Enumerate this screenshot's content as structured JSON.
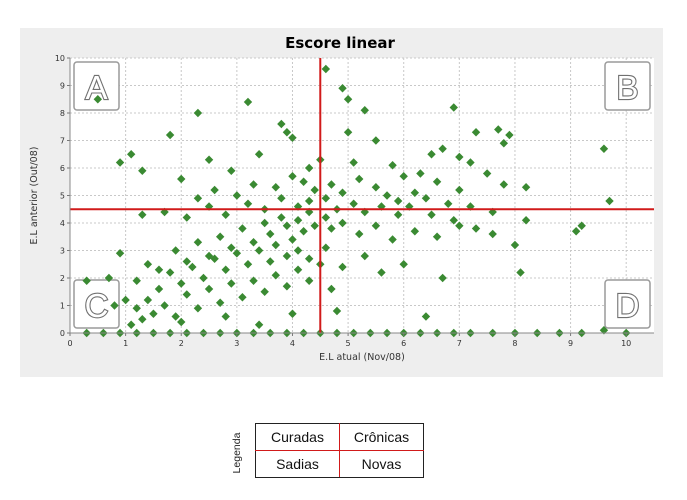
{
  "chart_data": {
    "type": "scatter",
    "title": "Escore linear",
    "xlabel": "E.L atual (Nov/08)",
    "ylabel": "E.L anterior (Out/08)",
    "xlim": [
      0,
      10.5
    ],
    "ylim": [
      0,
      10
    ],
    "xticks": [
      "0",
      "1",
      "2",
      "3",
      "4",
      "5",
      "6",
      "7",
      "8",
      "9",
      "10"
    ],
    "yticks": [
      "0",
      "1",
      "2",
      "3",
      "4",
      "5",
      "6",
      "7",
      "8",
      "9",
      "10"
    ],
    "grid": true,
    "reference_lines": {
      "x": 4.5,
      "y": 4.5,
      "color": "#d11a1a"
    },
    "quadrant_labels": [
      "A",
      "B",
      "C",
      "D"
    ],
    "marker_color": "#3a8a32",
    "points": [
      [
        0.5,
        8.5
      ],
      [
        4.6,
        9.6
      ],
      [
        4.9,
        8.9
      ],
      [
        5.0,
        8.5
      ],
      [
        6.9,
        8.2
      ],
      [
        3.2,
        8.4
      ],
      [
        5.3,
        8.1
      ],
      [
        2.3,
        8.0
      ],
      [
        3.8,
        7.6
      ],
      [
        3.9,
        7.3
      ],
      [
        4.0,
        7.1
      ],
      [
        1.8,
        7.2
      ],
      [
        7.3,
        7.3
      ],
      [
        7.7,
        7.4
      ],
      [
        7.9,
        7.2
      ],
      [
        7.8,
        6.9
      ],
      [
        5.5,
        7.0
      ],
      [
        5.0,
        7.3
      ],
      [
        6.7,
        6.7
      ],
      [
        6.5,
        6.5
      ],
      [
        7.0,
        6.4
      ],
      [
        7.2,
        6.2
      ],
      [
        9.6,
        6.7
      ],
      [
        1.1,
        6.5
      ],
      [
        0.9,
        6.2
      ],
      [
        1.3,
        5.9
      ],
      [
        2.5,
        6.3
      ],
      [
        3.4,
        6.5
      ],
      [
        2.0,
        5.6
      ],
      [
        2.9,
        5.9
      ],
      [
        4.3,
        6.0
      ],
      [
        4.5,
        6.3
      ],
      [
        5.1,
        6.2
      ],
      [
        5.8,
        6.1
      ],
      [
        6.0,
        5.7
      ],
      [
        6.3,
        5.8
      ],
      [
        6.6,
        5.5
      ],
      [
        7.5,
        5.8
      ],
      [
        7.8,
        5.4
      ],
      [
        8.2,
        5.3
      ],
      [
        7.0,
        5.2
      ],
      [
        9.7,
        4.8
      ],
      [
        2.3,
        4.9
      ],
      [
        2.6,
        5.2
      ],
      [
        3.0,
        5.0
      ],
      [
        3.3,
        5.4
      ],
      [
        3.7,
        5.3
      ],
      [
        4.0,
        5.7
      ],
      [
        4.2,
        5.5
      ],
      [
        4.4,
        5.2
      ],
      [
        4.7,
        5.4
      ],
      [
        4.9,
        5.1
      ],
      [
        5.2,
        5.6
      ],
      [
        5.5,
        5.3
      ],
      [
        5.7,
        5.0
      ],
      [
        5.9,
        4.8
      ],
      [
        6.2,
        5.1
      ],
      [
        6.4,
        4.9
      ],
      [
        6.8,
        4.7
      ],
      [
        7.2,
        4.6
      ],
      [
        7.6,
        4.4
      ],
      [
        8.2,
        4.1
      ],
      [
        9.2,
        3.9
      ],
      [
        9.1,
        3.7
      ],
      [
        1.3,
        4.3
      ],
      [
        1.7,
        4.4
      ],
      [
        2.1,
        4.2
      ],
      [
        2.5,
        4.6
      ],
      [
        2.8,
        4.3
      ],
      [
        3.2,
        4.7
      ],
      [
        3.5,
        4.5
      ],
      [
        3.8,
        4.9
      ],
      [
        4.1,
        4.6
      ],
      [
        4.3,
        4.8
      ],
      [
        4.6,
        4.9
      ],
      [
        4.8,
        4.5
      ],
      [
        5.1,
        4.7
      ],
      [
        5.3,
        4.4
      ],
      [
        5.6,
        4.6
      ],
      [
        5.9,
        4.3
      ],
      [
        6.1,
        4.6
      ],
      [
        6.5,
        4.3
      ],
      [
        6.9,
        4.1
      ],
      [
        7.3,
        3.8
      ],
      [
        7.6,
        3.6
      ],
      [
        8.0,
        3.2
      ],
      [
        8.1,
        2.2
      ],
      [
        6.7,
        2.0
      ],
      [
        0.9,
        2.9
      ],
      [
        1.6,
        2.3
      ],
      [
        1.9,
        3.0
      ],
      [
        2.1,
        2.6
      ],
      [
        2.3,
        3.3
      ],
      [
        2.5,
        2.8
      ],
      [
        2.7,
        3.5
      ],
      [
        2.9,
        3.1
      ],
      [
        3.1,
        3.8
      ],
      [
        3.3,
        3.3
      ],
      [
        3.5,
        4.0
      ],
      [
        3.6,
        3.6
      ],
      [
        3.8,
        4.2
      ],
      [
        3.9,
        3.9
      ],
      [
        4.0,
        3.4
      ],
      [
        4.1,
        4.1
      ],
      [
        4.2,
        3.7
      ],
      [
        4.3,
        4.4
      ],
      [
        4.4,
        3.9
      ],
      [
        4.6,
        4.2
      ],
      [
        4.7,
        3.8
      ],
      [
        4.9,
        4.0
      ],
      [
        5.2,
        3.6
      ],
      [
        5.5,
        3.9
      ],
      [
        5.8,
        3.4
      ],
      [
        6.2,
        3.7
      ],
      [
        6.6,
        3.5
      ],
      [
        7.0,
        3.9
      ],
      [
        1.2,
        1.9
      ],
      [
        1.4,
        2.5
      ],
      [
        1.6,
        1.6
      ],
      [
        1.8,
        2.2
      ],
      [
        2.0,
        1.8
      ],
      [
        2.2,
        2.4
      ],
      [
        2.4,
        2.0
      ],
      [
        2.6,
        2.7
      ],
      [
        2.8,
        2.3
      ],
      [
        3.0,
        2.9
      ],
      [
        3.2,
        2.5
      ],
      [
        3.4,
        3.0
      ],
      [
        3.6,
        2.6
      ],
      [
        3.7,
        3.2
      ],
      [
        3.9,
        2.8
      ],
      [
        4.1,
        3.0
      ],
      [
        4.3,
        2.7
      ],
      [
        4.6,
        3.1
      ],
      [
        4.9,
        2.4
      ],
      [
        5.3,
        2.8
      ],
      [
        5.6,
        2.2
      ],
      [
        6.0,
        2.5
      ],
      [
        0.7,
        2.0
      ],
      [
        0.3,
        1.9
      ],
      [
        0.8,
        1.0
      ],
      [
        1.0,
        1.2
      ],
      [
        1.2,
        0.9
      ],
      [
        1.4,
        1.2
      ],
      [
        1.5,
        0.7
      ],
      [
        1.7,
        1.0
      ],
      [
        1.9,
        0.6
      ],
      [
        2.1,
        1.4
      ],
      [
        2.3,
        0.9
      ],
      [
        2.5,
        1.6
      ],
      [
        2.7,
        1.1
      ],
      [
        2.9,
        1.8
      ],
      [
        3.1,
        1.3
      ],
      [
        3.3,
        1.9
      ],
      [
        3.5,
        1.5
      ],
      [
        3.7,
        2.1
      ],
      [
        3.9,
        1.7
      ],
      [
        4.1,
        2.3
      ],
      [
        4.3,
        1.9
      ],
      [
        4.5,
        2.5
      ],
      [
        4.7,
        1.6
      ],
      [
        4.8,
        0.8
      ],
      [
        1.1,
        0.3
      ],
      [
        1.3,
        0.5
      ],
      [
        2.0,
        0.4
      ],
      [
        2.8,
        0.6
      ],
      [
        3.4,
        0.3
      ],
      [
        4.0,
        0.7
      ],
      [
        6.4,
        0.6
      ],
      [
        9.6,
        0.1
      ],
      [
        0.3,
        0
      ],
      [
        0.6,
        0
      ],
      [
        0.9,
        0
      ],
      [
        1.2,
        0
      ],
      [
        1.5,
        0
      ],
      [
        1.8,
        0
      ],
      [
        2.1,
        0
      ],
      [
        2.4,
        0
      ],
      [
        2.7,
        0
      ],
      [
        3.0,
        0
      ],
      [
        3.3,
        0
      ],
      [
        3.6,
        0
      ],
      [
        3.9,
        0
      ],
      [
        4.2,
        0
      ],
      [
        4.5,
        0
      ],
      [
        4.8,
        0
      ],
      [
        5.1,
        0
      ],
      [
        5.4,
        0
      ],
      [
        5.7,
        0
      ],
      [
        6.0,
        0
      ],
      [
        6.3,
        0
      ],
      [
        6.6,
        0
      ],
      [
        6.9,
        0
      ],
      [
        7.2,
        0
      ],
      [
        7.6,
        0
      ],
      [
        8.0,
        0
      ],
      [
        8.4,
        0
      ],
      [
        8.8,
        0
      ],
      [
        9.2,
        0
      ],
      [
        10.0,
        0
      ]
    ]
  },
  "legend": {
    "title": "Legenda",
    "cells": [
      "Curadas",
      "Crônicas",
      "Sadias",
      "Novas"
    ]
  }
}
